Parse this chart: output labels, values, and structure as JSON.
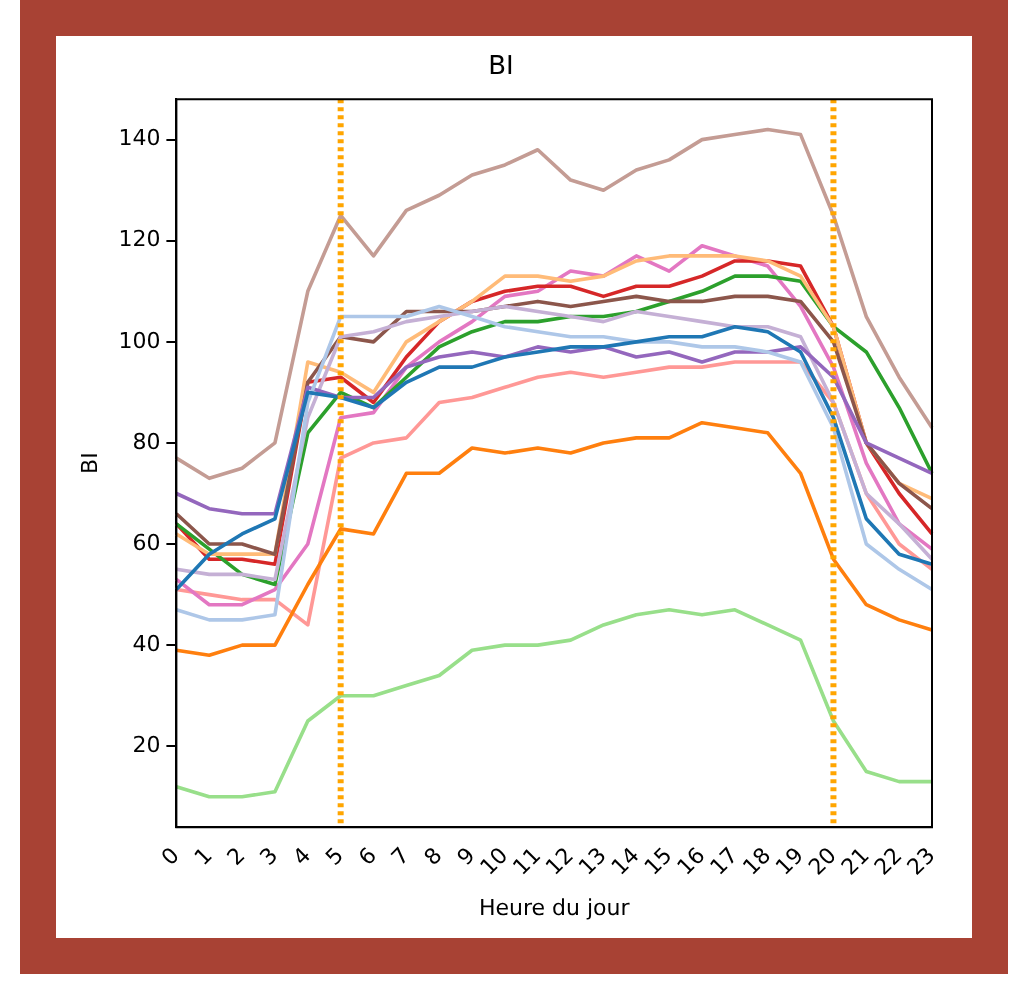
{
  "chart_data": {
    "type": "line",
    "title": "BI",
    "xlabel": "Heure du jour",
    "ylabel": "BI",
    "categories": [
      "0",
      "1",
      "2",
      "3",
      "4",
      "5",
      "6",
      "7",
      "8",
      "9",
      "10",
      "11",
      "12",
      "13",
      "14",
      "15",
      "16",
      "17",
      "18",
      "19",
      "20",
      "21",
      "22",
      "23"
    ],
    "ylim": [
      4,
      148
    ],
    "yticks": [
      20,
      40,
      60,
      80,
      100,
      120,
      140
    ],
    "grid": false,
    "legend": false,
    "marker": "none",
    "line_style": "solid",
    "ref_lines": [
      {
        "axis": "x",
        "value": "5",
        "color": "#ffa500",
        "line_style": "dotted"
      },
      {
        "axis": "x",
        "value": "20",
        "color": "#ffa500",
        "line_style": "dotted"
      }
    ],
    "series": [
      {
        "color": "#c49c94",
        "values": [
          77,
          73,
          75,
          80,
          110,
          125,
          117,
          126,
          129,
          133,
          135,
          138,
          132,
          130,
          134,
          136,
          140,
          141,
          142,
          141,
          125,
          105,
          93,
          83
        ]
      },
      {
        "color": "#ff7f0e",
        "values": [
          39,
          38,
          40,
          40,
          52,
          63,
          62,
          74,
          74,
          79,
          78,
          79,
          78,
          80,
          81,
          81,
          84,
          83,
          82,
          74,
          57,
          48,
          45,
          43
        ]
      },
      {
        "color": "#98df8a",
        "values": [
          12,
          10,
          10,
          11,
          25,
          30,
          30,
          32,
          34,
          39,
          40,
          40,
          41,
          44,
          46,
          47,
          46,
          47,
          44,
          41,
          25,
          15,
          13,
          13
        ]
      },
      {
        "color": "#1f77b4",
        "values": [
          51,
          58,
          62,
          65,
          90,
          89,
          87,
          92,
          95,
          95,
          97,
          98,
          99,
          99,
          100,
          101,
          101,
          103,
          102,
          98,
          85,
          65,
          58,
          56
        ]
      },
      {
        "color": "#aec7e8",
        "values": [
          47,
          45,
          45,
          46,
          88,
          105,
          105,
          105,
          107,
          105,
          103,
          102,
          101,
          101,
          100,
          100,
          99,
          99,
          98,
          96,
          83,
          60,
          55,
          51
        ]
      },
      {
        "color": "#9467bd",
        "values": [
          70,
          67,
          66,
          66,
          91,
          89,
          89,
          95,
          97,
          98,
          97,
          99,
          98,
          99,
          97,
          98,
          96,
          98,
          98,
          99,
          93,
          80,
          77,
          74
        ]
      },
      {
        "color": "#c5b0d5",
        "values": [
          55,
          54,
          54,
          53,
          85,
          101,
          102,
          104,
          105,
          106,
          107,
          106,
          105,
          104,
          106,
          105,
          104,
          103,
          103,
          101,
          88,
          70,
          64,
          57
        ]
      },
      {
        "color": "#8c564b",
        "values": [
          66,
          60,
          60,
          58,
          92,
          101,
          100,
          106,
          106,
          106,
          107,
          108,
          107,
          108,
          109,
          108,
          108,
          109,
          109,
          108,
          100,
          80,
          72,
          67
        ]
      },
      {
        "color": "#ffbb78",
        "values": [
          62,
          58,
          58,
          58,
          96,
          94,
          90,
          100,
          104,
          108,
          113,
          113,
          112,
          113,
          116,
          117,
          117,
          117,
          116,
          113,
          103,
          80,
          72,
          69
        ]
      },
      {
        "color": "#2ca02c",
        "values": [
          64,
          59,
          54,
          52,
          82,
          90,
          87,
          93,
          99,
          102,
          104,
          104,
          105,
          105,
          106,
          108,
          110,
          113,
          113,
          112,
          103,
          98,
          87,
          74
        ]
      },
      {
        "color": "#d62728",
        "values": [
          64,
          57,
          57,
          56,
          92,
          93,
          88,
          97,
          104,
          108,
          110,
          111,
          111,
          109,
          111,
          111,
          113,
          116,
          116,
          115,
          103,
          80,
          70,
          62
        ]
      },
      {
        "color": "#e377c2",
        "values": [
          53,
          48,
          48,
          51,
          60,
          85,
          86,
          95,
          100,
          104,
          109,
          110,
          114,
          113,
          117,
          114,
          119,
          117,
          115,
          107,
          95,
          76,
          64,
          59
        ]
      },
      {
        "color": "#ff9896",
        "values": [
          51,
          50,
          49,
          49,
          44,
          77,
          80,
          81,
          88,
          89,
          91,
          93,
          94,
          93,
          94,
          95,
          95,
          96,
          96,
          96,
          88,
          70,
          60,
          55
        ]
      }
    ]
  }
}
